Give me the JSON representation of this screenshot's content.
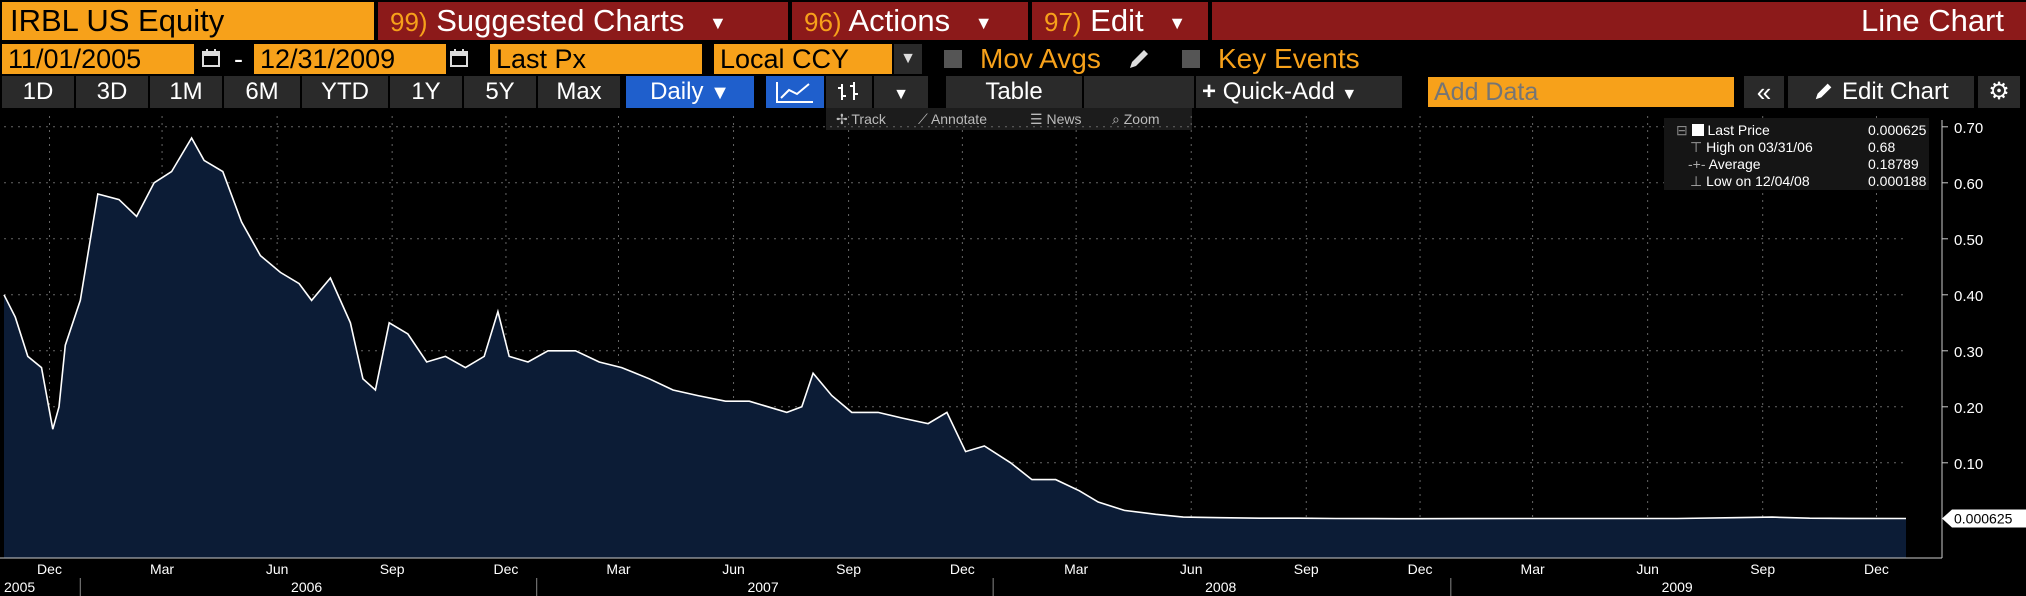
{
  "header": {
    "ticker": "IRBL US Equity",
    "menus": [
      {
        "num": "99)",
        "label": "Suggested Charts"
      },
      {
        "num": "96)",
        "label": "Actions"
      },
      {
        "num": "97)",
        "label": "Edit"
      }
    ],
    "chart_type_title": "Line Chart"
  },
  "controls": {
    "start_date": "11/01/2005",
    "date_separator": "-",
    "end_date": "12/31/2009",
    "field": "Last Px",
    "currency": "Local CCY",
    "mov_avgs": "Mov Avgs",
    "key_events": "Key Events"
  },
  "ranges": [
    "1D",
    "3D",
    "1M",
    "6M",
    "YTD",
    "1Y",
    "5Y",
    "Max"
  ],
  "toolbar": {
    "frequency": "Daily",
    "table": "Table",
    "quick_add": "Quick-Add",
    "add_data_placeholder": "Add Data",
    "edit_chart": "Edit Chart"
  },
  "tools": [
    "Track",
    "Annotate",
    "News",
    "Zoom"
  ],
  "legend": {
    "rows": [
      {
        "label": "Last Price",
        "value": "0.000625"
      },
      {
        "label": "High on 03/31/06",
        "value": "0.68"
      },
      {
        "label": "Average",
        "value": "0.18789"
      },
      {
        "label": "Low on 12/04/08",
        "value": "0.000188"
      }
    ]
  },
  "colors": {
    "orange": "#f7a11a",
    "menu_red": "#8c1a1a",
    "area_fill": "#0c1c36",
    "line": "#ffffff",
    "active_blue": "#1f5fcc"
  },
  "chart_data": {
    "type": "area",
    "ylim": [
      -0.07,
      0.73
    ],
    "ytick_labels": [
      "0.70",
      "0.60",
      "0.50",
      "0.40",
      "0.30",
      "0.20",
      "0.10"
    ],
    "last_value_label": "0.000625",
    "x_month_labels": [
      "Dec",
      "Mar",
      "Jun",
      "Sep",
      "Dec",
      "Mar",
      "Jun",
      "Sep",
      "Dec",
      "Mar",
      "Jun",
      "Sep",
      "Dec",
      "Mar",
      "Jun",
      "Sep",
      "Dec"
    ],
    "x_year_labels": [
      "2005",
      "2006",
      "2007",
      "2008",
      "2009"
    ],
    "x_start": "2005-11-01",
    "x_end": "2009-12-31",
    "series": [
      {
        "dates": [
          "2005-11-01",
          "2005-11-10",
          "2005-11-20",
          "2005-12-01",
          "2005-12-10",
          "2005-12-15",
          "2005-12-20",
          "2006-01-01",
          "2006-01-15",
          "2006-02-01",
          "2006-02-15",
          "2006-03-01",
          "2006-03-15",
          "2006-03-31",
          "2006-04-10",
          "2006-04-25",
          "2006-05-10",
          "2006-05-25",
          "2006-06-10",
          "2006-06-25",
          "2006-07-05",
          "2006-07-20",
          "2006-08-05",
          "2006-08-15",
          "2006-08-25",
          "2006-09-05",
          "2006-09-20",
          "2006-10-05",
          "2006-10-20",
          "2006-11-05",
          "2006-11-20",
          "2006-12-01",
          "2006-12-10",
          "2006-12-25",
          "2007-01-10",
          "2007-02-01",
          "2007-02-20",
          "2007-03-10",
          "2007-04-01",
          "2007-04-20",
          "2007-05-10",
          "2007-06-01",
          "2007-06-20",
          "2007-07-05",
          "2007-07-20",
          "2007-08-01",
          "2007-08-10",
          "2007-08-25",
          "2007-09-10",
          "2007-10-01",
          "2007-10-20",
          "2007-11-10",
          "2007-11-25",
          "2007-12-10",
          "2007-12-25",
          "2008-01-15",
          "2008-02-01",
          "2008-02-20",
          "2008-03-10",
          "2008-03-25",
          "2008-04-15",
          "2008-05-10",
          "2008-06-01",
          "2008-07-01",
          "2008-08-01",
          "2008-09-01",
          "2008-10-01",
          "2008-11-01",
          "2008-12-04",
          "2009-01-15",
          "2009-03-01",
          "2009-05-01",
          "2009-07-01",
          "2009-08-15",
          "2009-09-15",
          "2009-10-15",
          "2009-11-15",
          "2009-12-31"
        ],
        "values": [
          0.4,
          0.36,
          0.29,
          0.27,
          0.16,
          0.2,
          0.31,
          0.39,
          0.58,
          0.57,
          0.54,
          0.6,
          0.62,
          0.68,
          0.64,
          0.62,
          0.53,
          0.47,
          0.44,
          0.42,
          0.39,
          0.43,
          0.35,
          0.25,
          0.23,
          0.35,
          0.33,
          0.28,
          0.29,
          0.27,
          0.29,
          0.37,
          0.29,
          0.28,
          0.3,
          0.3,
          0.28,
          0.27,
          0.25,
          0.23,
          0.22,
          0.21,
          0.21,
          0.2,
          0.19,
          0.2,
          0.26,
          0.22,
          0.19,
          0.19,
          0.18,
          0.17,
          0.19,
          0.12,
          0.13,
          0.1,
          0.07,
          0.07,
          0.05,
          0.03,
          0.015,
          0.008,
          0.003,
          0.002,
          0.001,
          0.001,
          0.0005,
          0.0003,
          0.000188,
          0.0003,
          0.0005,
          0.0006,
          0.0006,
          0.002,
          0.003,
          0.001,
          0.0008,
          0.000625
        ]
      }
    ]
  }
}
